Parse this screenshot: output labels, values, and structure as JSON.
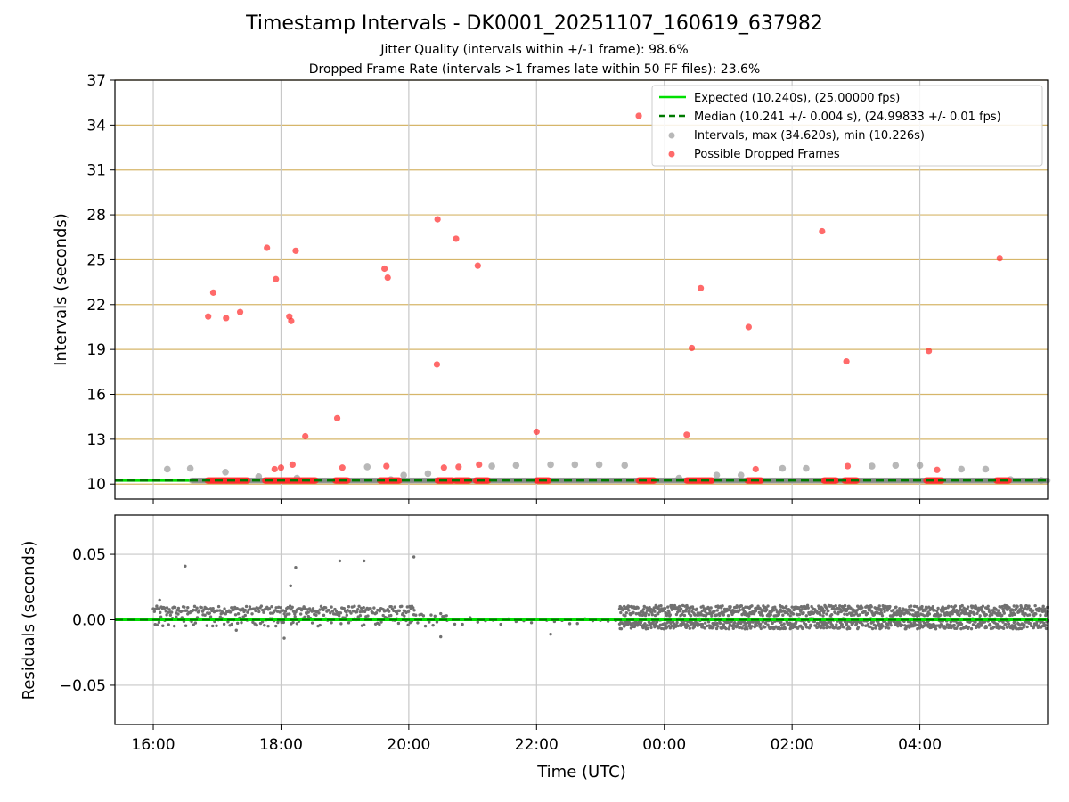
{
  "title": "Timestamp Intervals - DK0001_20251107_160619_637982",
  "subtitle_jitter": "Jitter Quality (intervals within +/-1 frame): 98.6%",
  "subtitle_dropped": "Dropped Frame Rate (intervals >1 frames late within 50 FF files): 23.6%",
  "colors": {
    "expected": "#00e000",
    "median": "#007a00",
    "intervals": "#888888",
    "dropped": "#ff2b2b",
    "hgrid_top": "#d6b66a",
    "grid": "#c8c8c8",
    "residuals": "#707070"
  },
  "chart_data": [
    {
      "type": "scatter",
      "panel": "top",
      "xlabel": "",
      "ylabel": "Intervals (seconds)",
      "x_unit": "hours since 16:00 UTC",
      "xlim": [
        -0.6,
        14.0
      ],
      "ylim": [
        9,
        37
      ],
      "yticks": [
        10,
        13,
        16,
        19,
        22,
        25,
        28,
        31,
        34,
        37
      ],
      "ytick_labels": [
        "10",
        "13",
        "16",
        "19",
        "22",
        "25",
        "28",
        "31",
        "34",
        "37"
      ],
      "xticks": [
        0,
        2,
        4,
        6,
        8,
        10,
        12
      ],
      "legend_position": "top-right",
      "legend": {
        "expected": "Expected (10.240s), (25.00000 fps)",
        "median": "Median (10.241 +/- 0.004 s), (24.99833 +/- 0.01 fps)",
        "intervals": "Intervals, max (34.620s), min (10.226s)",
        "dropped": "Possible Dropped Frames"
      },
      "expected_value": 10.24,
      "median_value": 10.241,
      "intervals_outliers": [
        {
          "x": 0.22,
          "y": 11.0
        },
        {
          "x": 0.58,
          "y": 11.05
        },
        {
          "x": 1.13,
          "y": 10.8
        },
        {
          "x": 1.65,
          "y": 10.5
        },
        {
          "x": 2.25,
          "y": 10.4
        },
        {
          "x": 3.35,
          "y": 11.15
        },
        {
          "x": 3.72,
          "y": 10.3
        },
        {
          "x": 3.92,
          "y": 10.6
        },
        {
          "x": 4.3,
          "y": 10.7
        },
        {
          "x": 5.3,
          "y": 11.2
        },
        {
          "x": 5.68,
          "y": 11.25
        },
        {
          "x": 6.22,
          "y": 11.3
        },
        {
          "x": 6.6,
          "y": 11.3
        },
        {
          "x": 6.98,
          "y": 11.3
        },
        {
          "x": 7.38,
          "y": 11.25
        },
        {
          "x": 8.23,
          "y": 10.4
        },
        {
          "x": 8.82,
          "y": 10.6
        },
        {
          "x": 9.2,
          "y": 10.6
        },
        {
          "x": 9.85,
          "y": 11.05
        },
        {
          "x": 10.22,
          "y": 11.05
        },
        {
          "x": 11.25,
          "y": 11.2
        },
        {
          "x": 11.62,
          "y": 11.25
        },
        {
          "x": 12.0,
          "y": 11.25
        },
        {
          "x": 12.65,
          "y": 11.0
        },
        {
          "x": 13.03,
          "y": 11.0
        },
        {
          "x": 13.42,
          "y": 10.3
        },
        {
          "x": 13.9,
          "y": 10.25
        }
      ],
      "dropped_segments": [
        [
          0.85,
          1.48
        ],
        [
          1.75,
          2.55
        ],
        [
          2.85,
          3.05
        ],
        [
          3.55,
          3.85
        ],
        [
          4.45,
          4.7
        ],
        [
          4.73,
          4.95
        ],
        [
          5.05,
          5.25
        ],
        [
          6.0,
          6.2
        ],
        [
          7.6,
          7.85
        ],
        [
          8.35,
          8.75
        ],
        [
          9.3,
          9.52
        ],
        [
          10.5,
          10.7
        ],
        [
          10.82,
          11.02
        ],
        [
          12.1,
          12.35
        ],
        [
          13.2,
          13.4
        ]
      ],
      "dropped_points": [
        {
          "x": 0.86,
          "y": 21.2
        },
        {
          "x": 0.94,
          "y": 22.8
        },
        {
          "x": 1.14,
          "y": 21.1
        },
        {
          "x": 1.36,
          "y": 21.5
        },
        {
          "x": 1.78,
          "y": 25.8
        },
        {
          "x": 1.92,
          "y": 23.7
        },
        {
          "x": 1.9,
          "y": 11.0
        },
        {
          "x": 2.0,
          "y": 11.1
        },
        {
          "x": 2.13,
          "y": 21.2
        },
        {
          "x": 2.16,
          "y": 20.9
        },
        {
          "x": 2.18,
          "y": 11.3
        },
        {
          "x": 2.23,
          "y": 25.6
        },
        {
          "x": 2.38,
          "y": 13.2
        },
        {
          "x": 2.88,
          "y": 14.4
        },
        {
          "x": 2.96,
          "y": 11.1
        },
        {
          "x": 3.62,
          "y": 24.4
        },
        {
          "x": 3.67,
          "y": 23.8
        },
        {
          "x": 3.65,
          "y": 11.2
        },
        {
          "x": 4.45,
          "y": 27.7
        },
        {
          "x": 4.44,
          "y": 18.0
        },
        {
          "x": 4.55,
          "y": 11.1
        },
        {
          "x": 4.74,
          "y": 26.4
        },
        {
          "x": 4.78,
          "y": 11.15
        },
        {
          "x": 5.08,
          "y": 24.6
        },
        {
          "x": 5.1,
          "y": 11.3
        },
        {
          "x": 6.0,
          "y": 13.5
        },
        {
          "x": 7.6,
          "y": 34.62
        },
        {
          "x": 8.35,
          "y": 13.3
        },
        {
          "x": 8.43,
          "y": 19.1
        },
        {
          "x": 8.57,
          "y": 23.1
        },
        {
          "x": 9.32,
          "y": 20.5
        },
        {
          "x": 9.43,
          "y": 11.0
        },
        {
          "x": 10.47,
          "y": 26.9
        },
        {
          "x": 10.85,
          "y": 18.2
        },
        {
          "x": 10.87,
          "y": 11.2
        },
        {
          "x": 12.14,
          "y": 18.9
        },
        {
          "x": 12.27,
          "y": 10.95
        },
        {
          "x": 13.25,
          "y": 25.1
        }
      ]
    },
    {
      "type": "scatter",
      "panel": "bottom",
      "xlabel": "Time (UTC)",
      "ylabel": "Residuals (seconds)",
      "xlim": [
        -0.6,
        14.0
      ],
      "ylim": [
        -0.08,
        0.08
      ],
      "yticks": [
        -0.05,
        0.0,
        0.05
      ],
      "ytick_labels": [
        "−0.05",
        "0.00",
        "0.05"
      ],
      "xticks": [
        0,
        2,
        4,
        6,
        8,
        10,
        12
      ],
      "xtick_labels": [
        "16:00",
        "18:00",
        "20:00",
        "22:00",
        "00:00",
        "02:00",
        "04:00"
      ],
      "notable_points": [
        {
          "x": 0.5,
          "y": 0.041
        },
        {
          "x": 2.15,
          "y": 0.026
        },
        {
          "x": 2.23,
          "y": 0.04
        },
        {
          "x": 2.92,
          "y": 0.045
        },
        {
          "x": 3.3,
          "y": 0.045
        },
        {
          "x": 4.08,
          "y": 0.048
        },
        {
          "x": 0.1,
          "y": 0.015
        },
        {
          "x": 4.5,
          "y": -0.013
        },
        {
          "x": 6.22,
          "y": -0.011
        },
        {
          "x": 1.3,
          "y": -0.008
        },
        {
          "x": 2.05,
          "y": -0.014
        }
      ],
      "bands": [
        {
          "x_range": [
            0.0,
            4.1
          ],
          "center": 0.0075,
          "spread": 0.003
        },
        {
          "x_range": [
            7.3,
            14.0
          ],
          "center": 0.007,
          "spread": 0.004
        },
        {
          "x_range": [
            7.3,
            14.0
          ],
          "center": -0.003,
          "spread": 0.004
        }
      ]
    }
  ]
}
